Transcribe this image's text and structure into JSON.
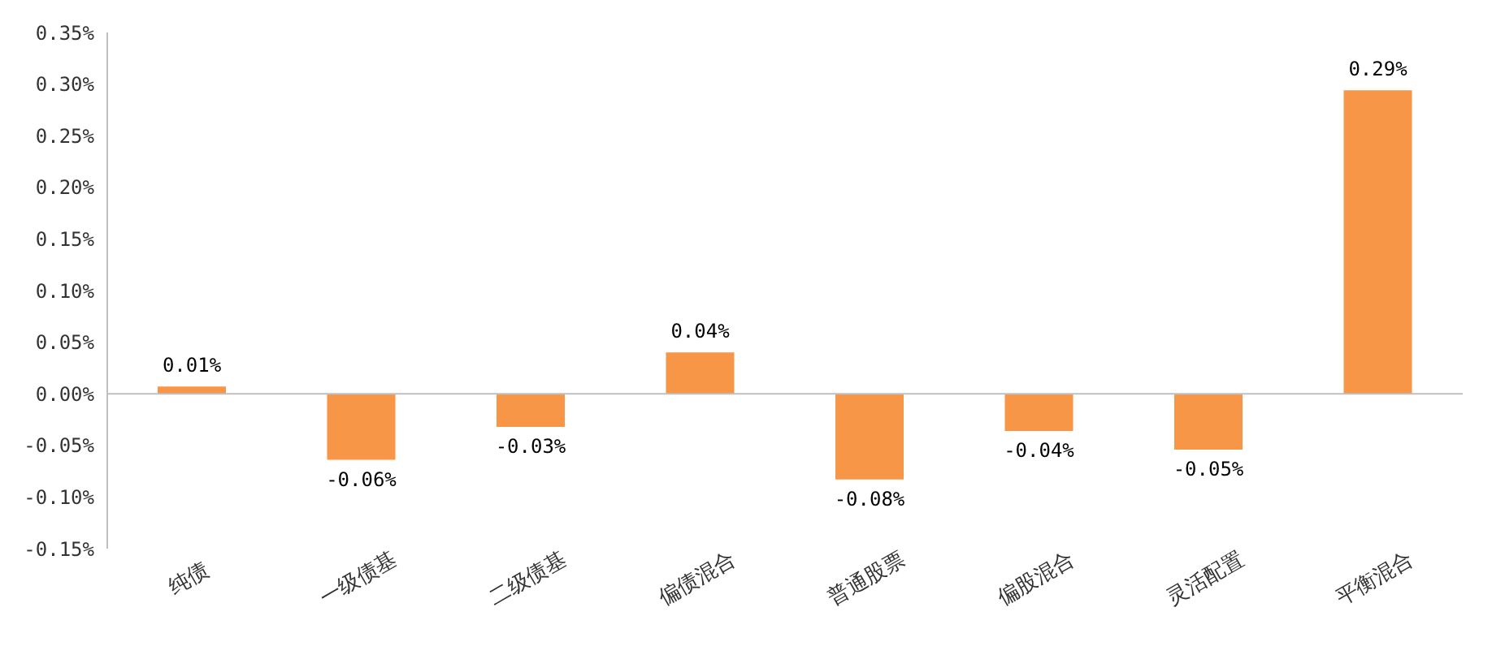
{
  "chart_data": {
    "type": "bar",
    "categories": [
      "纯债",
      "一级债基",
      "二级债基",
      "偏债混合",
      "普通股票",
      "偏股混合",
      "灵活配置",
      "平衡混合"
    ],
    "values": [
      0.007,
      -0.064,
      -0.032,
      0.04,
      -0.083,
      -0.036,
      -0.054,
      0.294
    ],
    "value_labels": [
      "0.01%",
      "-0.06%",
      "-0.03%",
      "0.04%",
      "-0.08%",
      "-0.04%",
      "-0.05%",
      "0.29%"
    ],
    "color": "#f79646",
    "ylim": [
      -0.15,
      0.35
    ],
    "yticks": [
      {
        "value": -0.15,
        "label": "-0.15%"
      },
      {
        "value": -0.1,
        "label": "-0.10%"
      },
      {
        "value": -0.05,
        "label": "-0.05%"
      },
      {
        "value": 0,
        "label": "0.00%"
      },
      {
        "value": 0.05,
        "label": "0.05%"
      },
      {
        "value": 0.1,
        "label": "0.10%"
      },
      {
        "value": 0.15,
        "label": "0.15%"
      },
      {
        "value": 0.2,
        "label": "0.20%"
      },
      {
        "value": 0.25,
        "label": "0.25%"
      },
      {
        "value": 0.3,
        "label": "0.30%"
      },
      {
        "value": 0.35,
        "label": "0.35%"
      }
    ],
    "ref_lines": [
      {
        "axis": "y",
        "value": 0,
        "color": "#bfbfbf"
      }
    ],
    "legend": false
  }
}
